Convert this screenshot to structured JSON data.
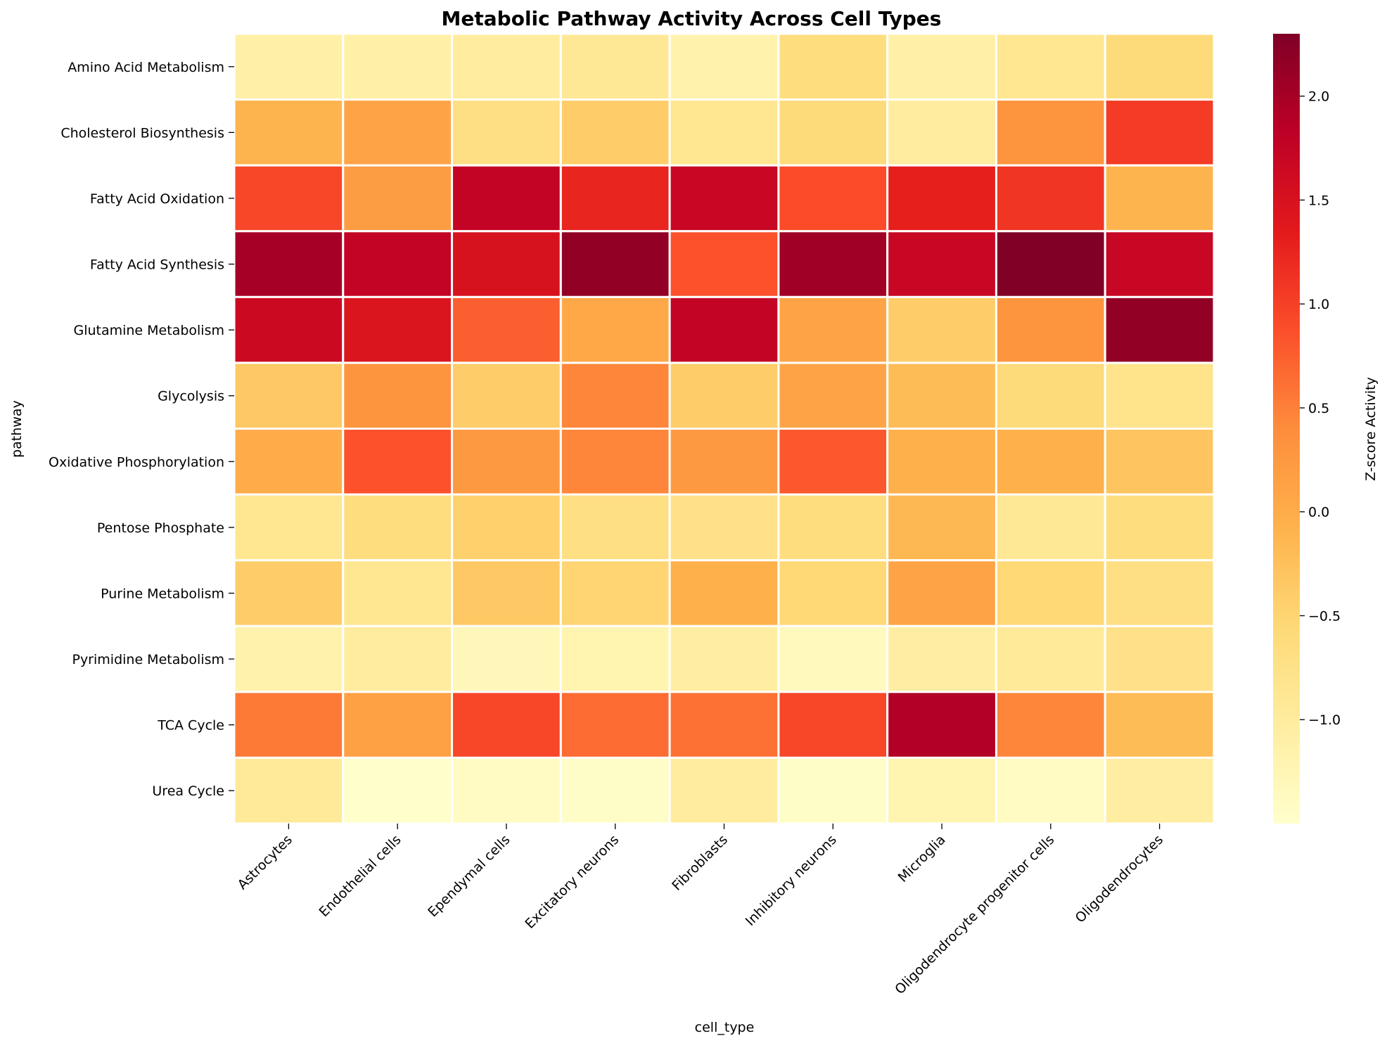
{
  "chart_data": {
    "type": "heatmap",
    "title": "Metabolic Pathway Activity Across Cell Types",
    "xlabel": "cell_type",
    "ylabel": "pathway",
    "x_categories": [
      "Astrocytes",
      "Endothelial cells",
      "Ependymal cells",
      "Excitatory neurons",
      "Fibroblasts",
      "Inhibitory neurons",
      "Microglia",
      "Oligodendrocyte progenitor cells",
      "Oligodendrocytes"
    ],
    "y_categories": [
      "Amino Acid Metabolism",
      "Cholesterol Biosynthesis",
      "Fatty Acid Oxidation",
      "Fatty Acid Synthesis",
      "Glutamine Metabolism",
      "Glycolysis",
      "Oxidative Phosphorylation",
      "Pentose Phosphate",
      "Purine Metabolism",
      "Pyrimidine Metabolism",
      "TCA Cycle",
      "Urea Cycle"
    ],
    "values": [
      [
        -1.1,
        -1.1,
        -1.0,
        -0.9,
        -1.15,
        -0.65,
        -1.1,
        -0.85,
        -0.6
      ],
      [
        -0.1,
        0.1,
        -0.7,
        -0.4,
        -0.85,
        -0.6,
        -1.0,
        0.3,
        1.05
      ],
      [
        0.95,
        0.2,
        1.75,
        1.25,
        1.7,
        0.9,
        1.3,
        1.1,
        -0.1
      ],
      [
        2.0,
        1.75,
        1.5,
        2.15,
        0.85,
        2.05,
        1.7,
        2.3,
        1.7
      ],
      [
        1.65,
        1.45,
        0.75,
        0.05,
        1.75,
        0.1,
        -0.4,
        0.3,
        2.15
      ],
      [
        -0.35,
        0.3,
        -0.4,
        0.45,
        -0.4,
        0.1,
        -0.2,
        -0.6,
        -0.8
      ],
      [
        0.0,
        0.85,
        0.25,
        0.45,
        0.25,
        0.8,
        -0.05,
        -0.05,
        -0.3
      ],
      [
        -0.85,
        -0.65,
        -0.45,
        -0.7,
        -0.75,
        -0.65,
        -0.15,
        -0.9,
        -0.65
      ],
      [
        -0.4,
        -0.85,
        -0.35,
        -0.5,
        -0.05,
        -0.55,
        0.1,
        -0.55,
        -0.7
      ],
      [
        -1.15,
        -1.0,
        -1.3,
        -1.2,
        -1.05,
        -1.35,
        -1.05,
        -0.95,
        -0.75
      ],
      [
        0.55,
        0.15,
        0.95,
        0.65,
        0.6,
        0.95,
        1.9,
        0.45,
        -0.2
      ],
      [
        -0.95,
        -1.5,
        -1.4,
        -1.45,
        -1.0,
        -1.45,
        -1.2,
        -1.4,
        -1.05
      ]
    ],
    "colorbar": {
      "label": "Z-score Activity",
      "min": -1.5,
      "max": 2.3,
      "ticks": [
        -1.0,
        -0.5,
        0.0,
        0.5,
        1.0,
        1.5,
        2.0
      ],
      "tick_labels": [
        "−1.0",
        "−0.5",
        "0.0",
        "0.5",
        "1.0",
        "1.5",
        "2.0"
      ],
      "colormap": "YlOrRd"
    },
    "grid": false
  }
}
